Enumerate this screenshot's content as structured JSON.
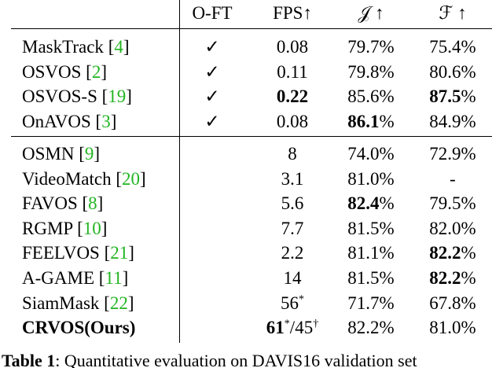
{
  "table": {
    "header": [
      "O-FT",
      "FPS↑",
      "𝒥 ↑",
      "ℱ ↑"
    ],
    "groups": [
      [
        {
          "method": [
            "MaskTrack ",
            "[",
            {
              "text": "4",
              "style": "cite"
            },
            "]"
          ],
          "oft": [
            "✓"
          ],
          "fps": [
            "0.08"
          ],
          "j": [
            "79.7%"
          ],
          "f": [
            "75.4%"
          ]
        },
        {
          "method": [
            "OSVOS ",
            "[",
            {
              "text": "2",
              "style": "cite"
            },
            "]"
          ],
          "oft": [
            "✓"
          ],
          "fps": [
            "0.11"
          ],
          "j": [
            "79.8%"
          ],
          "f": [
            "80.6%"
          ]
        },
        {
          "method": [
            "OSVOS-S ",
            "[",
            {
              "text": "19",
              "style": "cite"
            },
            "]"
          ],
          "oft": [
            "✓"
          ],
          "fps": [
            {
              "text": "0.22",
              "style": "bold"
            }
          ],
          "j": [
            "85.6%"
          ],
          "f": [
            {
              "text": "87.5",
              "style": "bold"
            },
            "%"
          ]
        },
        {
          "method": [
            "OnAVOS ",
            "[",
            {
              "text": "3",
              "style": "cite"
            },
            "]"
          ],
          "oft": [
            "✓"
          ],
          "fps": [
            "0.08"
          ],
          "j": [
            {
              "text": "86.1",
              "style": "bold"
            },
            "%"
          ],
          "f": [
            "84.9%"
          ]
        }
      ],
      [
        {
          "method": [
            "OSMN ",
            "[",
            {
              "text": "9",
              "style": "cite"
            },
            "]"
          ],
          "fps": [
            "8"
          ],
          "j": [
            "74.0%"
          ],
          "f": [
            "72.9%"
          ]
        },
        {
          "method": [
            "VideoMatch ",
            "[",
            {
              "text": "20",
              "style": "cite"
            },
            "]"
          ],
          "fps": [
            "3.1"
          ],
          "j": [
            "81.0%"
          ],
          "f": [
            "-"
          ]
        },
        {
          "method": [
            "FAVOS ",
            "[",
            {
              "text": "8",
              "style": "cite"
            },
            "]"
          ],
          "fps": [
            "5.6"
          ],
          "j": [
            {
              "text": "82.4",
              "style": "bold"
            },
            "%"
          ],
          "f": [
            "79.5%"
          ]
        },
        {
          "method": [
            "RGMP ",
            "[",
            {
              "text": "10",
              "style": "cite"
            },
            "]"
          ],
          "fps": [
            "7.7"
          ],
          "j": [
            "81.5%"
          ],
          "f": [
            "82.0%"
          ]
        },
        {
          "method": [
            "FEELVOS ",
            "[",
            {
              "text": "21",
              "style": "cite"
            },
            "]"
          ],
          "fps": [
            "2.2"
          ],
          "j": [
            "81.1%"
          ],
          "f": [
            {
              "text": "82.2",
              "style": "bold"
            },
            "%"
          ]
        },
        {
          "method": [
            "A-GAME ",
            "[",
            {
              "text": "11",
              "style": "cite"
            },
            "]"
          ],
          "fps": [
            "14"
          ],
          "j": [
            "81.5%"
          ],
          "f": [
            {
              "text": "82.2",
              "style": "bold"
            },
            "%"
          ]
        },
        {
          "method": [
            "SiamMask ",
            "[",
            {
              "text": "22",
              "style": "cite"
            },
            "]"
          ],
          "fps": [
            "56",
            {
              "text": "*",
              "style": "sup"
            }
          ],
          "j": [
            "71.7%"
          ],
          "f": [
            "67.8%"
          ]
        },
        {
          "method": [
            {
              "text": "CRVOS(Ours)",
              "style": "bold"
            }
          ],
          "fps": [
            {
              "text": "61",
              "style": "bold"
            },
            {
              "text": "*",
              "style": "sup"
            },
            "/45",
            {
              "text": "†",
              "style": "sup"
            }
          ],
          "j": [
            "82.2%"
          ],
          "f": [
            "81.0%"
          ]
        }
      ]
    ]
  },
  "caption": {
    "label": "Table 1",
    "text": ": Quantitative evaluation on DAVIS16 validation set"
  }
}
